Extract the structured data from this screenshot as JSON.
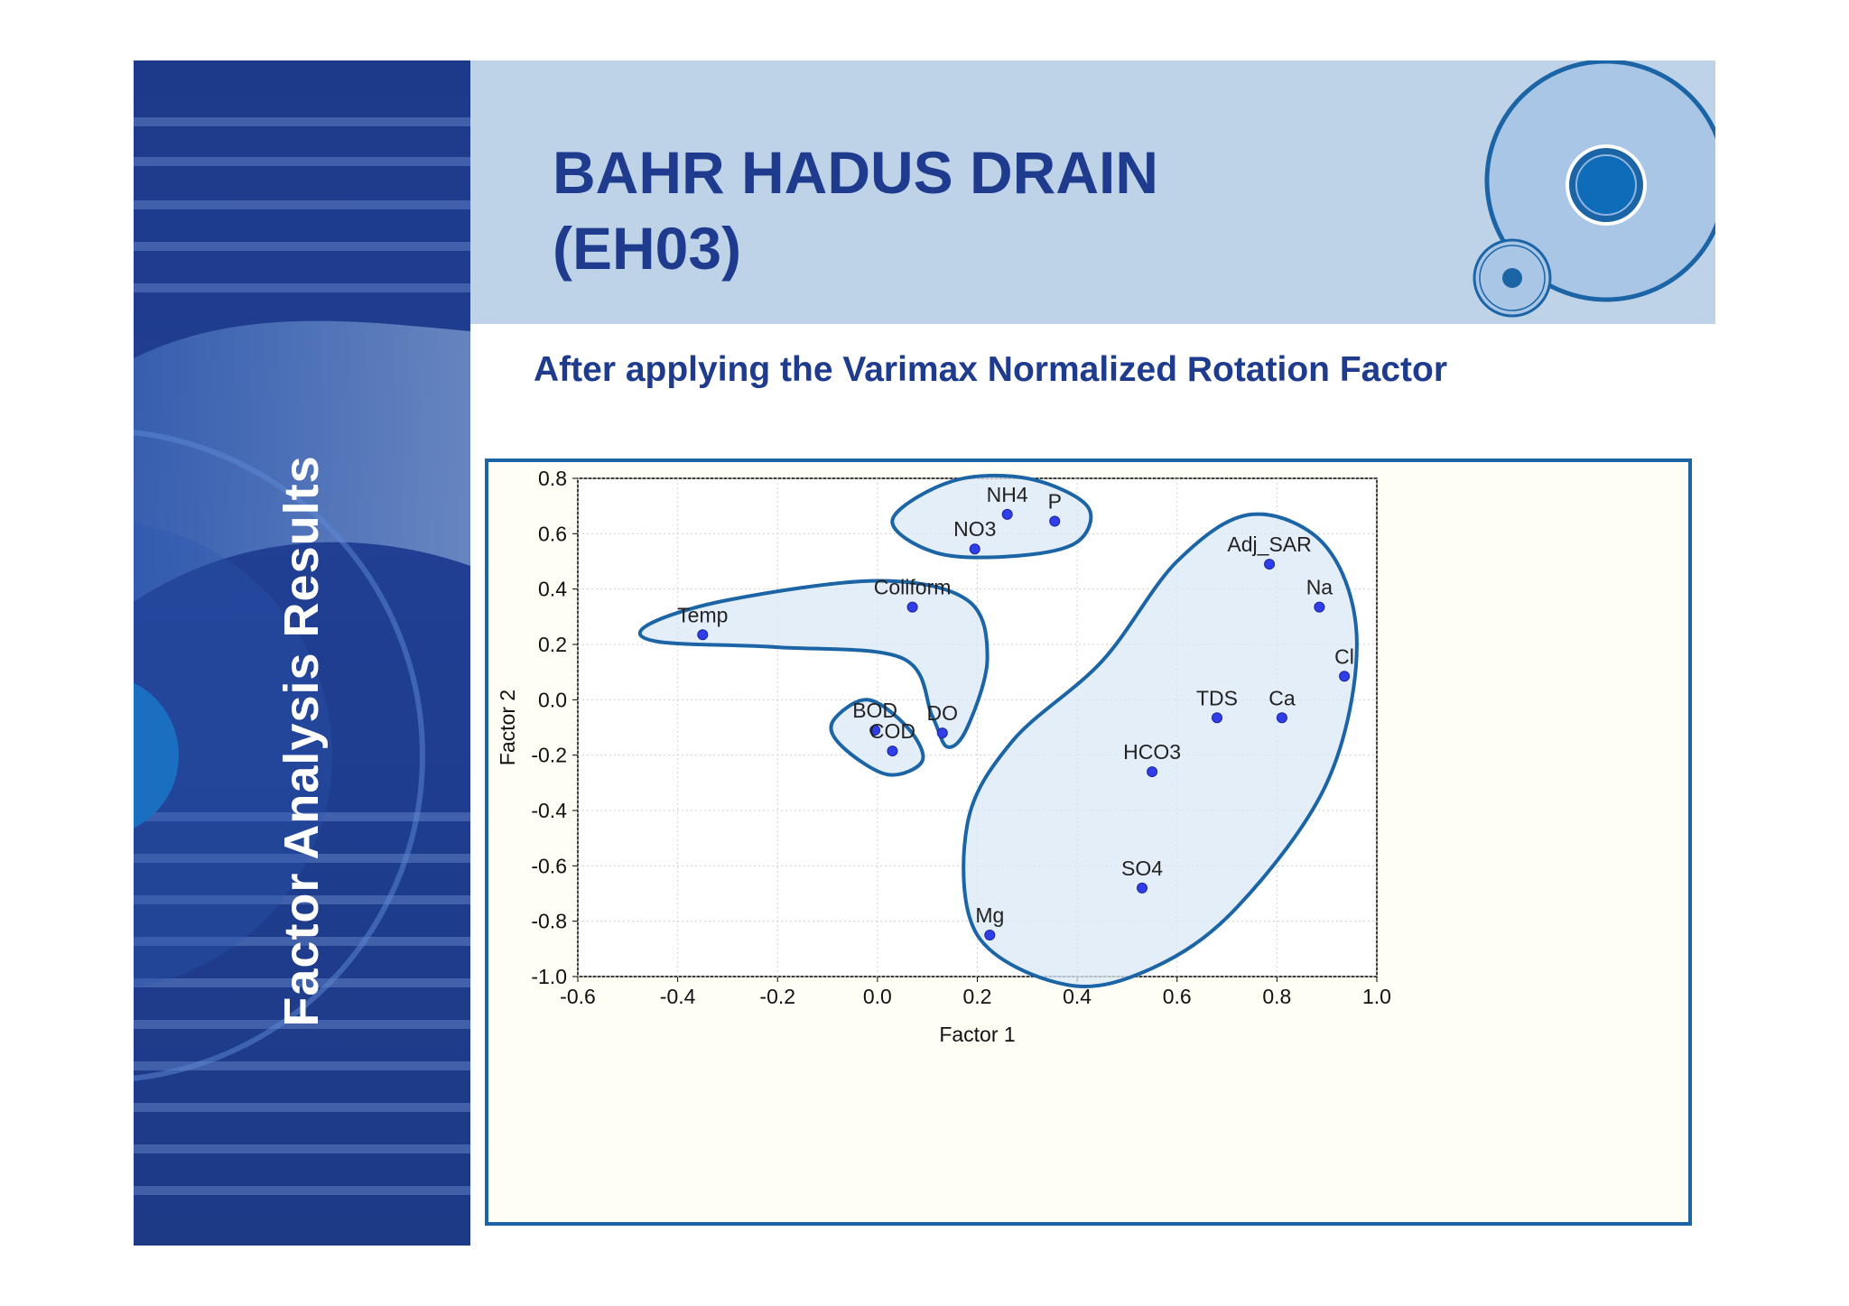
{
  "sidebar": {
    "title": "Factor Analysis Results"
  },
  "header": {
    "title": "BAHR HADUS DRAIN\n(EH03)"
  },
  "subtitle": "After applying the Varimax  Normalized Rotation Factor",
  "colors": {
    "sidebar": "#1d3a8a",
    "header_bg": "#bed3e8",
    "title": "#1e3b8e",
    "accent": "#1b64a6",
    "point": "#2f3ee8"
  },
  "chart_data": {
    "type": "scatter",
    "xlabel": "Factor 1",
    "ylabel": "Factor 2",
    "xlim": [
      -0.6,
      1.0
    ],
    "ylim": [
      -1.0,
      0.8
    ],
    "x_ticks": [
      "-0.6",
      "-0.4",
      "-0.2",
      "0.0",
      "0.2",
      "0.4",
      "0.6",
      "0.8",
      "1.0"
    ],
    "y_ticks": [
      "0.8",
      "0.6",
      "0.4",
      "0.2",
      "0.0",
      "-0.2",
      "-0.4",
      "-0.6",
      "-0.8",
      "-1.0"
    ],
    "grid": true,
    "points": [
      {
        "label": "NH4",
        "x": 0.26,
        "y": 0.67
      },
      {
        "label": "P",
        "x": 0.355,
        "y": 0.645
      },
      {
        "label": "NO3",
        "x": 0.195,
        "y": 0.545
      },
      {
        "label": "Adj_SAR",
        "x": 0.785,
        "y": 0.49
      },
      {
        "label": "Na",
        "x": 0.885,
        "y": 0.335
      },
      {
        "label": "Coliform",
        "x": 0.07,
        "y": 0.335
      },
      {
        "label": "Temp",
        "x": -0.35,
        "y": 0.235
      },
      {
        "label": "Cl",
        "x": 0.935,
        "y": 0.085
      },
      {
        "label": "TDS",
        "x": 0.68,
        "y": -0.065
      },
      {
        "label": "Ca",
        "x": 0.81,
        "y": -0.065
      },
      {
        "label": "BOD",
        "x": -0.005,
        "y": -0.11
      },
      {
        "label": "DO",
        "x": 0.13,
        "y": -0.12
      },
      {
        "label": "COD",
        "x": 0.03,
        "y": -0.185
      },
      {
        "label": "HCO3",
        "x": 0.55,
        "y": -0.26
      },
      {
        "label": "SO4",
        "x": 0.53,
        "y": -0.68
      },
      {
        "label": "Mg",
        "x": 0.225,
        "y": -0.85
      }
    ]
  }
}
